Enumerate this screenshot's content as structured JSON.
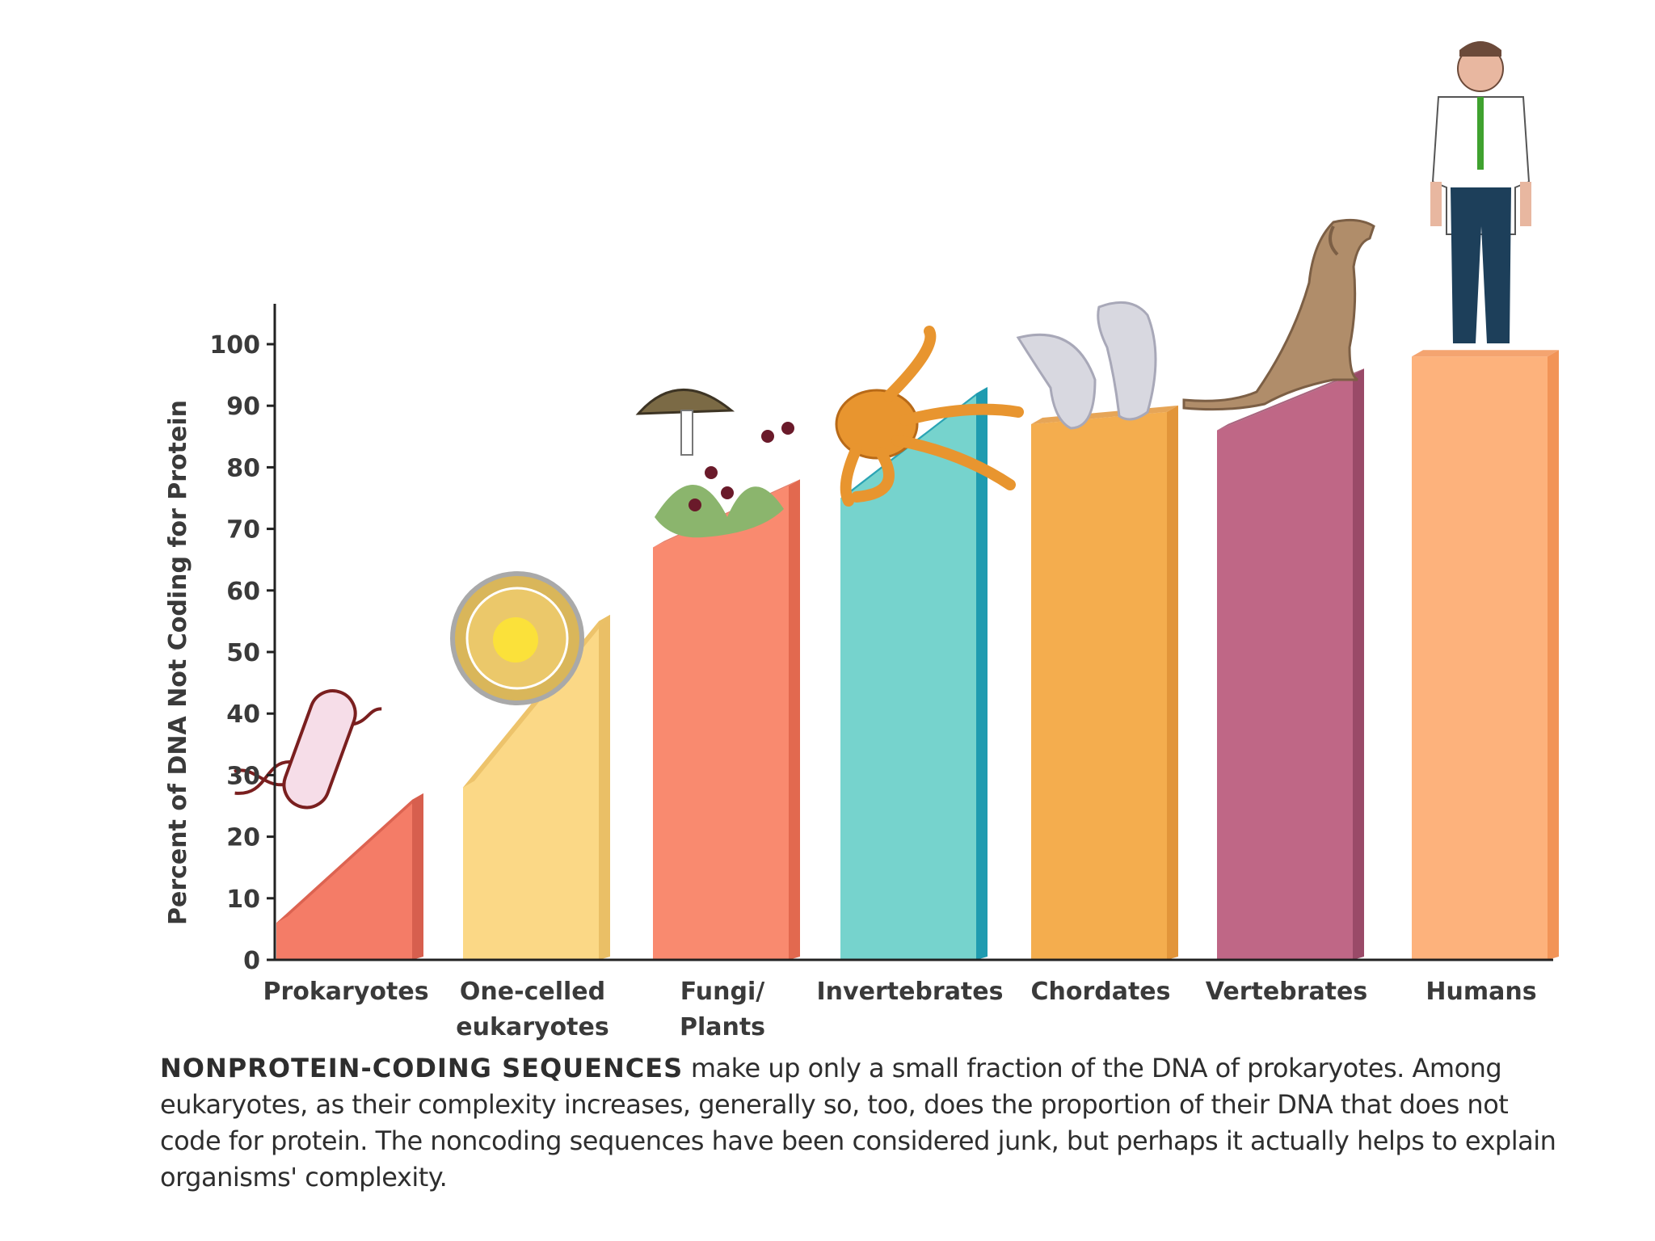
{
  "chart_data": {
    "type": "bar",
    "title": "",
    "ylabel": "Percent of DNA Not Coding for Protein",
    "xlabel": "",
    "ylim": [
      0,
      100
    ],
    "yticks": [
      0,
      10,
      20,
      30,
      40,
      50,
      60,
      70,
      80,
      90,
      100
    ],
    "categories": [
      "Prokaryotes",
      "One-celled eukaryotes",
      "Fungi/ Plants",
      "Invertebrates",
      "Chordates",
      "Vertebrates",
      "Humans"
    ],
    "category_lines": [
      [
        "Prokaryotes"
      ],
      [
        "One-celled",
        "eukaryotes"
      ],
      [
        "Fungi/",
        "Plants"
      ],
      [
        "Invertebrates"
      ],
      [
        "Chordates"
      ],
      [
        "Vertebrates"
      ],
      [
        "Humans"
      ]
    ],
    "values_low": [
      6,
      28,
      67,
      75,
      87,
      86,
      98
    ],
    "values_high": [
      26,
      55,
      77,
      92,
      89,
      95,
      98
    ],
    "colors": [
      "#f47c67",
      "#fbd886",
      "#f98a6f",
      "#76d3cd",
      "#f4ad4e",
      "#bf6786",
      "#fdb27c"
    ],
    "side_colors": [
      "#d75f4e",
      "#eabf66",
      "#e2694f",
      "#1f9bb0",
      "#e2953a",
      "#9a4a68",
      "#f29457"
    ],
    "illustrations": [
      "bacterium",
      "cell",
      "mushroom-and-plant",
      "octopus",
      "sea-squirts",
      "dog",
      "human"
    ]
  },
  "caption": {
    "lead": "NONPROTEIN-CODING SEQUENCES",
    "text": " make up only a small fraction of the DNA of prokaryotes. Among eukaryotes, as their complexity increases, generally so, too, does the proportion of their DNA that does not code for protein. The noncoding sequences have been considered junk, but perhaps it actually helps to explain organisms' complexity."
  }
}
